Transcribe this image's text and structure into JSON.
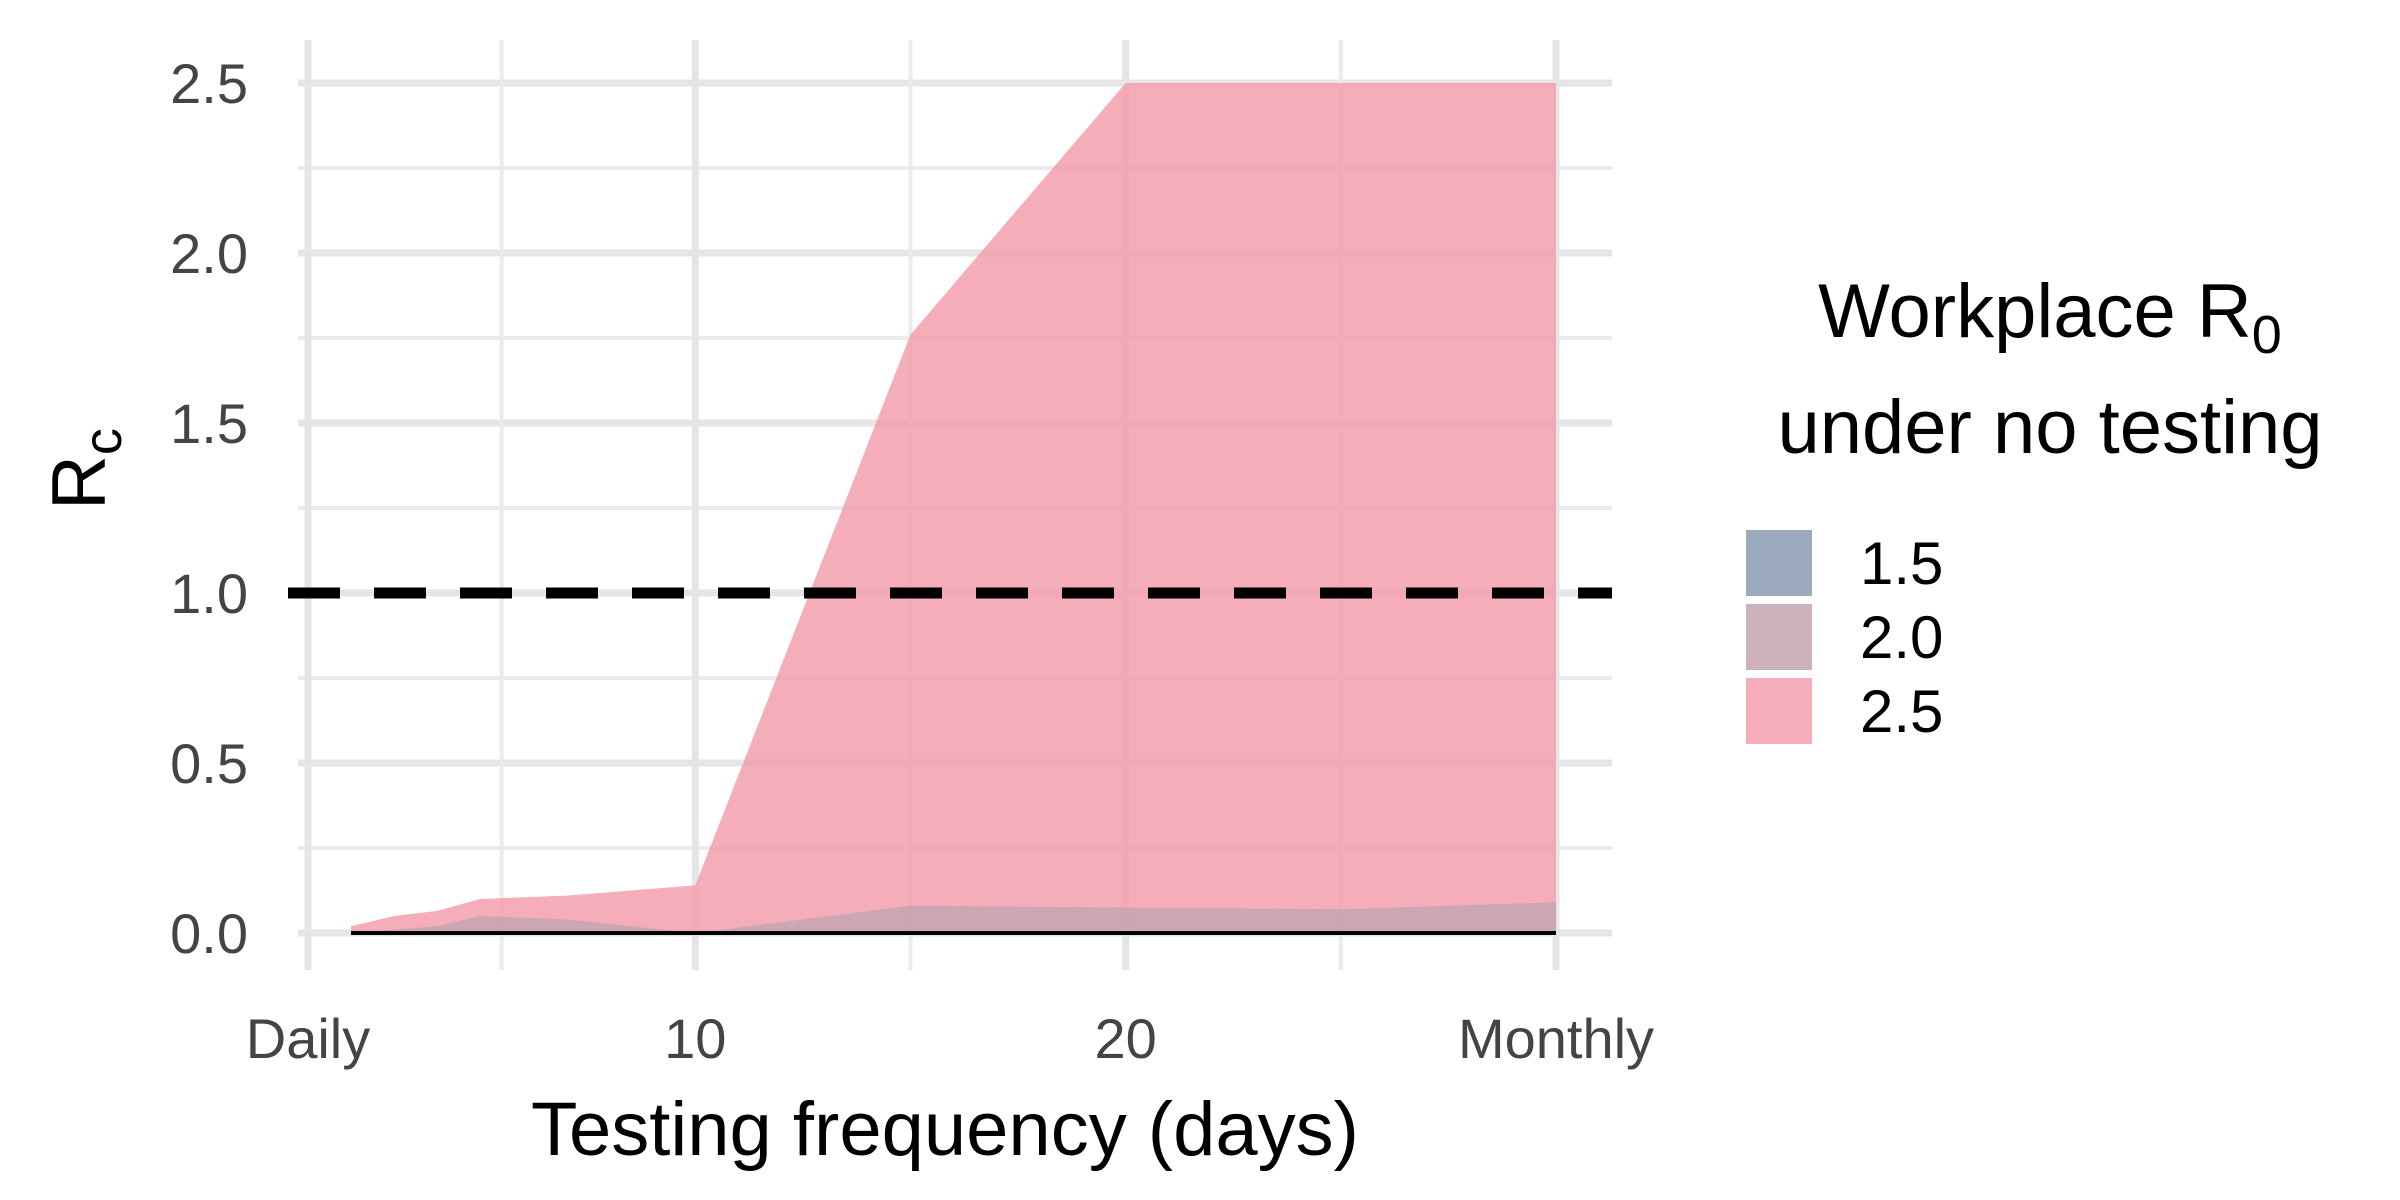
{
  "chart_data": {
    "type": "area",
    "xlabel": "Testing frequency (days)",
    "ylabel": {
      "main": "R",
      "sub": "c"
    },
    "xlim": [
      1,
      30
    ],
    "ylim": [
      0,
      2.5
    ],
    "x_ticks": [
      {
        "value": 1,
        "label": "Daily"
      },
      {
        "value": 10,
        "label": "10"
      },
      {
        "value": 20,
        "label": "20"
      },
      {
        "value": 30,
        "label": "Monthly"
      }
    ],
    "y_ticks": [
      {
        "value": 0,
        "label": "0.0"
      },
      {
        "value": 0.5,
        "label": "0.5"
      },
      {
        "value": 1,
        "label": "1.0"
      },
      {
        "value": 1.5,
        "label": "1.5"
      },
      {
        "value": 2,
        "label": "2.0"
      },
      {
        "value": 2.5,
        "label": "2.5"
      }
    ],
    "threshold": 1.0,
    "legend": {
      "title_line1": "Workplace R",
      "title_sub": "0",
      "title_line2": "under no testing",
      "entries": [
        {
          "label": "1.5",
          "color": "#8a9bb0"
        },
        {
          "label": "2.0",
          "color": "#c4a4b0"
        },
        {
          "label": "2.5",
          "color": "#f3a0ad"
        }
      ]
    },
    "series": [
      {
        "name": "1.5",
        "color": "#8a9bb0",
        "x": [
          2,
          3,
          4,
          5,
          7,
          10,
          15,
          20,
          25,
          30
        ],
        "values": [
          0,
          0,
          0,
          0,
          0,
          0,
          0,
          0,
          0,
          0
        ]
      },
      {
        "name": "2.0",
        "color": "#c4a4b0",
        "x": [
          2,
          3,
          4,
          5,
          7,
          10,
          15,
          20,
          25,
          30
        ],
        "values": [
          0,
          0.01,
          0.02,
          0.05,
          0.04,
          0.0,
          0.08,
          0.075,
          0.07,
          0.09
        ]
      },
      {
        "name": "2.5",
        "color": "#f3a0ad",
        "x": [
          2,
          3,
          4,
          5,
          7,
          10,
          15,
          20,
          25,
          30
        ],
        "values": [
          0.02,
          0.05,
          0.065,
          0.1,
          0.11,
          0.14,
          1.76,
          2.5,
          2.5,
          2.5
        ]
      }
    ]
  }
}
